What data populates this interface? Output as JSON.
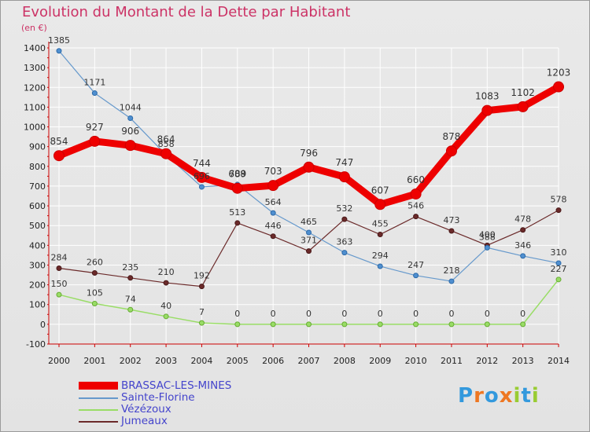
{
  "title": "Evolution du Montant de la Dette par Habitant",
  "unit_label": "(en €)",
  "logo_text": "Proxiti",
  "colors": {
    "title": "#cc3366",
    "grid": "#ffffff",
    "axis_text": "#222222",
    "legend_text": "#4444cc"
  },
  "chart_data": {
    "type": "line",
    "title": "Evolution du Montant de la Dette par Habitant",
    "ylabel": "(en €)",
    "xlabel": "",
    "x": [
      2000,
      2001,
      2002,
      2003,
      2004,
      2005,
      2006,
      2007,
      2008,
      2009,
      2010,
      2011,
      2012,
      2013,
      2014
    ],
    "ylim": [
      -100,
      1400
    ],
    "yticks": [
      -100,
      0,
      100,
      200,
      300,
      400,
      500,
      600,
      700,
      800,
      900,
      1000,
      1100,
      1200,
      1300,
      1400
    ],
    "grid": true,
    "legend_position": "bottom-left",
    "series": [
      {
        "name": "BRASSAC-LES-MINES",
        "color": "#ee0000",
        "values": [
          854,
          927,
          906,
          864,
          744,
          689,
          703,
          796,
          747,
          607,
          660,
          878,
          1083,
          1102,
          1203
        ]
      },
      {
        "name": "Sainte-Florine",
        "color": "#6699cc",
        "values": [
          1385,
          1171,
          1044,
          858,
          696,
          708,
          564,
          465,
          363,
          294,
          247,
          218,
          388,
          346,
          310
        ]
      },
      {
        "name": "Vézézoux",
        "color": "#99dd66",
        "values": [
          150,
          105,
          74,
          40,
          7,
          0,
          0,
          0,
          0,
          0,
          0,
          0,
          0,
          0,
          227
        ]
      },
      {
        "name": "Jumeaux",
        "color": "#6b2a2a",
        "values": [
          284,
          260,
          235,
          210,
          192,
          513,
          446,
          371,
          532,
          455,
          546,
          473,
          400,
          478,
          578
        ]
      }
    ]
  }
}
